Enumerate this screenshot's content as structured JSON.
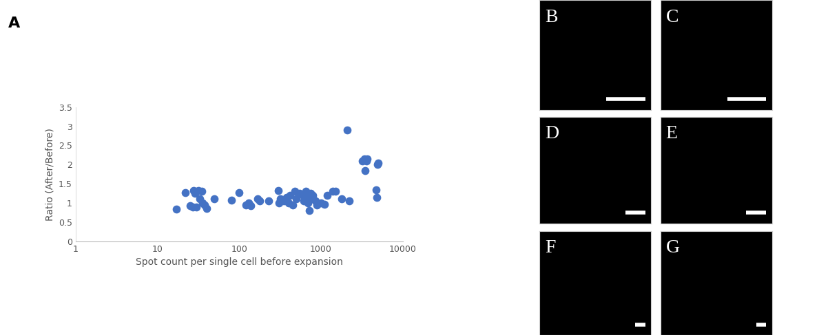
{
  "chart_data": {
    "type": "scatter",
    "x_label": "Spot count per single cell before expansion",
    "y_label": "Ratio (After/Before)",
    "color": "#4472c4",
    "marker": "o",
    "log": "x",
    "grid": false,
    "xlim": [
      1,
      10000
    ],
    "xticks": [
      1,
      10,
      100,
      1000,
      10000
    ],
    "ylim": [
      0,
      3.5
    ],
    "yticks": [
      0,
      0.5,
      1,
      1.5,
      2,
      2.5,
      3,
      3.5
    ],
    "x": [
      17,
      22,
      25,
      27,
      28,
      29,
      30,
      32,
      33,
      35,
      36,
      38,
      40,
      50,
      80,
      100,
      120,
      130,
      140,
      170,
      180,
      230,
      300,
      310,
      320,
      350,
      380,
      400,
      420,
      450,
      480,
      500,
      550,
      600,
      620,
      650,
      660,
      700,
      700,
      720,
      750,
      770,
      800,
      850,
      900,
      1000,
      1100,
      1200,
      1400,
      1500,
      1800,
      2100,
      2200,
      3200,
      3400,
      3500,
      3600,
      3700,
      4700,
      4800,
      4900,
      5000
    ],
    "values": [
      0.83,
      1.27,
      0.92,
      0.9,
      1.32,
      1.25,
      0.9,
      1.33,
      1.1,
      1.3,
      1.0,
      0.95,
      0.85,
      1.1,
      1.08,
      1.27,
      0.95,
      1.0,
      0.93,
      1.1,
      1.05,
      1.05,
      1.33,
      1.0,
      1.1,
      1.05,
      1.15,
      1.0,
      1.2,
      0.95,
      1.3,
      1.1,
      1.25,
      1.2,
      1.05,
      1.1,
      1.3,
      1.15,
      1.0,
      0.8,
      1.25,
      1.1,
      1.2,
      1.05,
      0.95,
      1.0,
      0.97,
      1.2,
      1.3,
      1.3,
      1.1,
      2.9,
      1.05,
      2.1,
      2.15,
      1.85,
      2.1,
      2.15,
      1.35,
      1.15,
      2.0,
      2.05
    ]
  },
  "panel_labels": [
    "A",
    "B",
    "C",
    "D",
    "E",
    "F",
    "G"
  ]
}
